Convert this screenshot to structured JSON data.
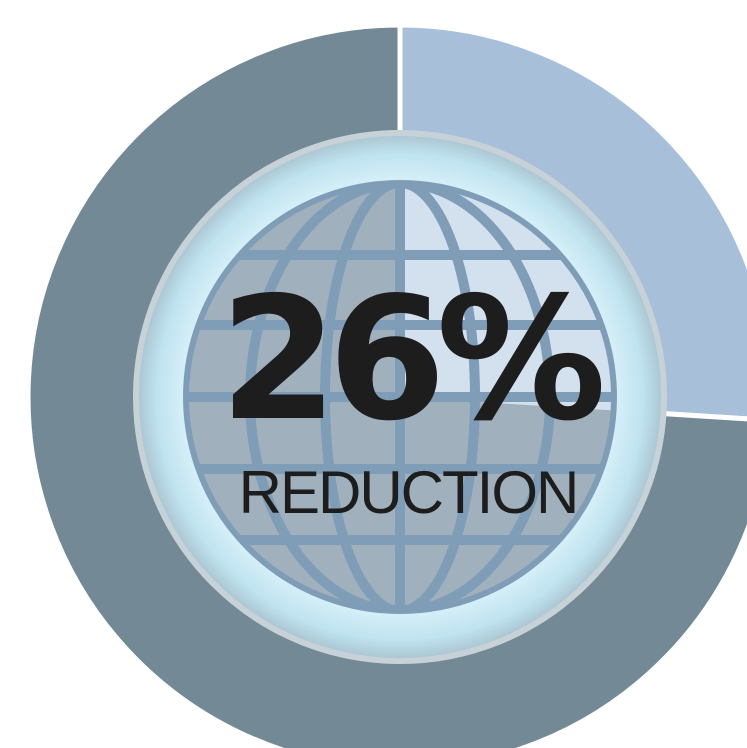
{
  "chart_data": {
    "type": "pie",
    "variant": "donut",
    "slices": [
      {
        "value": 26,
        "color": "#a8bfd9"
      },
      {
        "value": 74,
        "color": "#738a96"
      }
    ],
    "center": {
      "value_text": "26%",
      "caption": "REDUCTION"
    },
    "center_icon": "globe-icon"
  },
  "colors": {
    "reduction_slice": "#a8bfd9",
    "remainder_slice": "#738a96",
    "globe_fill": "#9fb1bf",
    "globe_lines": "#7f9db6",
    "glow": "#dff4fb",
    "text": "#1d1d1d"
  }
}
